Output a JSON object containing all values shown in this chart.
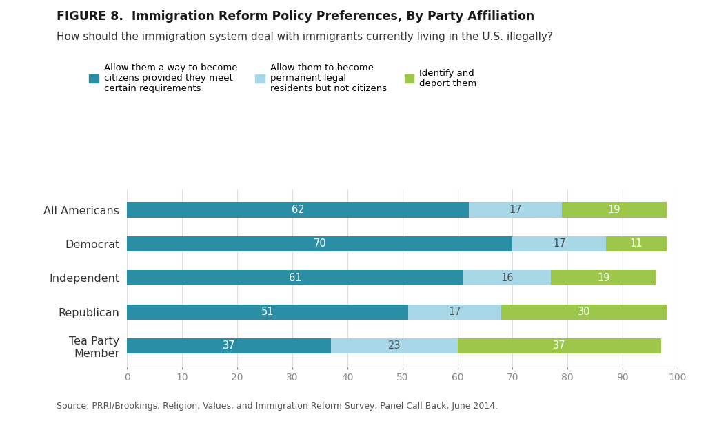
{
  "title_bold": "FIGURE 8.  Immigration Reform Policy Preferences, By Party Affiliation",
  "subtitle": "How should the immigration system deal with immigrants currently living in the U.S. illegally?",
  "source": "Source: PRRI/Brookings, Religion, Values, and Immigration Reform Survey, Panel Call Back, June 2014.",
  "categories": [
    "All Americans",
    "Democrat",
    "Independent",
    "Republican",
    "Tea Party\nMember"
  ],
  "series": [
    {
      "label": "Allow them a way to become\ncitizens provided they meet\ncertain requirements",
      "values": [
        62,
        70,
        61,
        51,
        37
      ],
      "color": "#2a8fa4"
    },
    {
      "label": "Allow them to become\npermanent legal\nresidents but not citizens",
      "values": [
        17,
        17,
        16,
        17,
        23
      ],
      "color": "#a8d8e8"
    },
    {
      "label": "Identify and\ndeport them",
      "values": [
        19,
        11,
        19,
        30,
        37
      ],
      "color": "#9dc74a"
    }
  ],
  "xlim": [
    0,
    100
  ],
  "xticks": [
    0,
    10,
    20,
    30,
    40,
    50,
    60,
    70,
    80,
    90,
    100
  ],
  "background_color": "#ffffff",
  "bar_height": 0.45,
  "figsize": [
    10.24,
    6.11
  ],
  "dpi": 100
}
